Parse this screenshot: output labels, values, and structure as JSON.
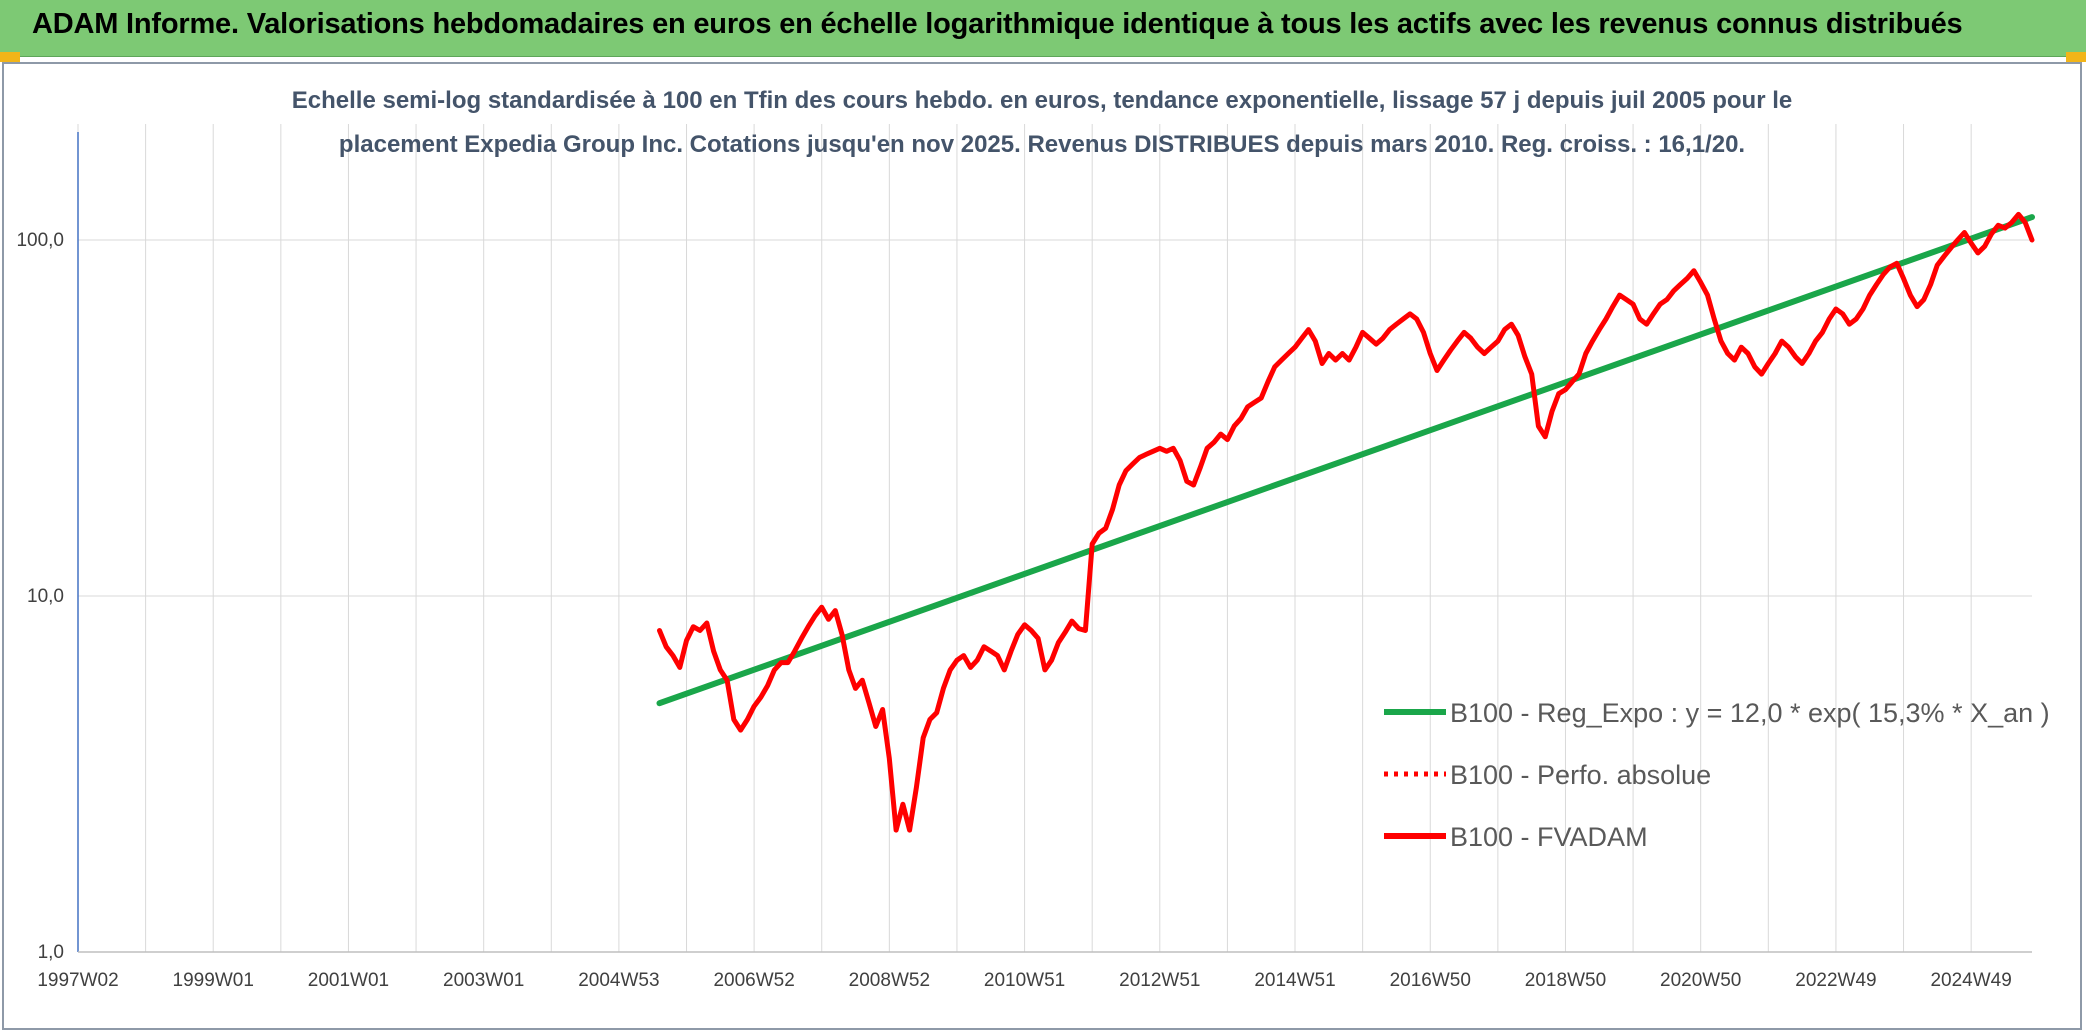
{
  "header": {
    "title": "ADAM Informe. Valorisations hebdomadaires en euros en échelle logarithmique identique à tous les actifs avec les revenus connus distribués"
  },
  "colors": {
    "banner": "#7dc974",
    "corner": "#f2b519",
    "regression": "#1aa64a",
    "performance": "#ff0000",
    "grid": "#d9d9d9",
    "axis": "#4472c4"
  },
  "chart_data": {
    "type": "line",
    "title_lines": [
      "Echelle semi-log standardisée à 100 en Tfin des cours hebdo. en euros, tendance exponentielle, lissage 57 j depuis juil 2005 pour le",
      "placement Expedia Group Inc. Cotations jusqu'en nov 2025. Revenus DISTRIBUES depuis mars 2010. Reg. croiss. : 16,1/20."
    ],
    "y_scale": "log",
    "ylim": [
      1,
      180
    ],
    "y_ticks": [
      {
        "value": 1,
        "label": "1,0"
      },
      {
        "value": 10,
        "label": "10,0"
      },
      {
        "value": 100,
        "label": "100,0"
      }
    ],
    "xlim": [
      1997.0,
      2025.9
    ],
    "x_ticks": [
      {
        "value": 1997.0,
        "label": "1997W02"
      },
      {
        "value": 1999.0,
        "label": "1999W01"
      },
      {
        "value": 2001.0,
        "label": "2001W01"
      },
      {
        "value": 2003.0,
        "label": "2003W01"
      },
      {
        "value": 2005.0,
        "label": "2004W53"
      },
      {
        "value": 2007.0,
        "label": "2006W52"
      },
      {
        "value": 2009.0,
        "label": "2008W52"
      },
      {
        "value": 2011.0,
        "label": "2010W51"
      },
      {
        "value": 2013.0,
        "label": "2012W51"
      },
      {
        "value": 2015.0,
        "label": "2014W51"
      },
      {
        "value": 2017.0,
        "label": "2016W50"
      },
      {
        "value": 2019.0,
        "label": "2018W50"
      },
      {
        "value": 2021.0,
        "label": "2020W50"
      },
      {
        "value": 2023.0,
        "label": "2022W49"
      },
      {
        "value": 2025.0,
        "label": "2024W49"
      }
    ],
    "grid": true,
    "legend_position": "bottom-right",
    "series": [
      {
        "name": "B100 - Reg_Expo : y = 12,0 * exp( 15,3% *  X_an )",
        "style": "solid",
        "color": "#1aa64a",
        "points": [
          [
            2005.6,
            5.0
          ],
          [
            2025.9,
            116.0
          ]
        ]
      },
      {
        "name": "B100 - Perfo. absolue",
        "style": "dotted",
        "color": "#ff0000",
        "points": []
      },
      {
        "name": "B100 - FVADAM",
        "style": "solid",
        "color": "#ff0000",
        "points": [
          [
            2005.6,
            8.0
          ],
          [
            2005.7,
            7.2
          ],
          [
            2005.8,
            6.8
          ],
          [
            2005.9,
            6.3
          ],
          [
            2006.0,
            7.5
          ],
          [
            2006.1,
            8.2
          ],
          [
            2006.2,
            8.0
          ],
          [
            2006.3,
            8.4
          ],
          [
            2006.4,
            7.0
          ],
          [
            2006.5,
            6.2
          ],
          [
            2006.6,
            5.8
          ],
          [
            2006.7,
            4.5
          ],
          [
            2006.8,
            4.2
          ],
          [
            2006.9,
            4.5
          ],
          [
            2007.0,
            4.9
          ],
          [
            2007.1,
            5.2
          ],
          [
            2007.2,
            5.6
          ],
          [
            2007.3,
            6.2
          ],
          [
            2007.4,
            6.5
          ],
          [
            2007.5,
            6.5
          ],
          [
            2007.6,
            7.0
          ],
          [
            2007.7,
            7.6
          ],
          [
            2007.8,
            8.2
          ],
          [
            2007.9,
            8.8
          ],
          [
            2008.0,
            9.3
          ],
          [
            2008.1,
            8.6
          ],
          [
            2008.2,
            9.1
          ],
          [
            2008.3,
            7.8
          ],
          [
            2008.4,
            6.2
          ],
          [
            2008.5,
            5.5
          ],
          [
            2008.6,
            5.8
          ],
          [
            2008.7,
            5.0
          ],
          [
            2008.8,
            4.3
          ],
          [
            2008.9,
            4.8
          ],
          [
            2009.0,
            3.5
          ],
          [
            2009.1,
            2.2
          ],
          [
            2009.2,
            2.6
          ],
          [
            2009.3,
            2.2
          ],
          [
            2009.4,
            2.9
          ],
          [
            2009.5,
            4.0
          ],
          [
            2009.6,
            4.5
          ],
          [
            2009.7,
            4.7
          ],
          [
            2009.8,
            5.5
          ],
          [
            2009.9,
            6.2
          ],
          [
            2010.0,
            6.6
          ],
          [
            2010.1,
            6.8
          ],
          [
            2010.2,
            6.3
          ],
          [
            2010.3,
            6.6
          ],
          [
            2010.4,
            7.2
          ],
          [
            2010.5,
            7.0
          ],
          [
            2010.6,
            6.8
          ],
          [
            2010.7,
            6.2
          ],
          [
            2010.8,
            7.0
          ],
          [
            2010.9,
            7.8
          ],
          [
            2011.0,
            8.3
          ],
          [
            2011.1,
            8.0
          ],
          [
            2011.2,
            7.6
          ],
          [
            2011.3,
            6.2
          ],
          [
            2011.4,
            6.6
          ],
          [
            2011.5,
            7.4
          ],
          [
            2011.6,
            7.9
          ],
          [
            2011.7,
            8.5
          ],
          [
            2011.8,
            8.1
          ],
          [
            2011.9,
            8.0
          ],
          [
            2012.0,
            14.0
          ],
          [
            2012.1,
            15.0
          ],
          [
            2012.2,
            15.5
          ],
          [
            2012.3,
            17.5
          ],
          [
            2012.4,
            20.5
          ],
          [
            2012.5,
            22.5
          ],
          [
            2012.6,
            23.5
          ],
          [
            2012.7,
            24.5
          ],
          [
            2012.8,
            25.0
          ],
          [
            2012.9,
            25.5
          ],
          [
            2013.0,
            26.0
          ],
          [
            2013.1,
            25.5
          ],
          [
            2013.2,
            26.0
          ],
          [
            2013.3,
            24.0
          ],
          [
            2013.4,
            21.0
          ],
          [
            2013.5,
            20.5
          ],
          [
            2013.6,
            23.0
          ],
          [
            2013.7,
            26.0
          ],
          [
            2013.8,
            27.0
          ],
          [
            2013.9,
            28.5
          ],
          [
            2014.0,
            27.5
          ],
          [
            2014.1,
            30.0
          ],
          [
            2014.2,
            31.5
          ],
          [
            2014.3,
            34.0
          ],
          [
            2014.4,
            35.0
          ],
          [
            2014.5,
            36.0
          ],
          [
            2014.6,
            40.0
          ],
          [
            2014.7,
            44.0
          ],
          [
            2014.8,
            46.0
          ],
          [
            2014.9,
            48.0
          ],
          [
            2015.0,
            50.0
          ],
          [
            2015.1,
            53.0
          ],
          [
            2015.2,
            56.0
          ],
          [
            2015.3,
            52.0
          ],
          [
            2015.4,
            45.0
          ],
          [
            2015.5,
            48.0
          ],
          [
            2015.6,
            46.0
          ],
          [
            2015.7,
            48.0
          ],
          [
            2015.8,
            46.0
          ],
          [
            2015.9,
            50.0
          ],
          [
            2016.0,
            55.0
          ],
          [
            2016.1,
            53.0
          ],
          [
            2016.2,
            51.0
          ],
          [
            2016.3,
            53.0
          ],
          [
            2016.4,
            56.0
          ],
          [
            2016.5,
            58.0
          ],
          [
            2016.6,
            60.0
          ],
          [
            2016.7,
            62.0
          ],
          [
            2016.8,
            60.0
          ],
          [
            2016.9,
            55.0
          ],
          [
            2017.0,
            48.0
          ],
          [
            2017.1,
            43.0
          ],
          [
            2017.2,
            46.0
          ],
          [
            2017.3,
            49.0
          ],
          [
            2017.4,
            52.0
          ],
          [
            2017.5,
            55.0
          ],
          [
            2017.6,
            53.0
          ],
          [
            2017.7,
            50.0
          ],
          [
            2017.8,
            48.0
          ],
          [
            2017.9,
            50.0
          ],
          [
            2018.0,
            52.0
          ],
          [
            2018.1,
            56.0
          ],
          [
            2018.2,
            58.0
          ],
          [
            2018.3,
            54.0
          ],
          [
            2018.4,
            47.0
          ],
          [
            2018.5,
            42.0
          ],
          [
            2018.6,
            30.0
          ],
          [
            2018.7,
            28.0
          ],
          [
            2018.8,
            33.0
          ],
          [
            2018.9,
            37.0
          ],
          [
            2019.0,
            38.0
          ],
          [
            2019.1,
            40.0
          ],
          [
            2019.2,
            42.0
          ],
          [
            2019.3,
            48.0
          ],
          [
            2019.4,
            52.0
          ],
          [
            2019.5,
            56.0
          ],
          [
            2019.6,
            60.0
          ],
          [
            2019.7,
            65.0
          ],
          [
            2019.8,
            70.0
          ],
          [
            2019.9,
            68.0
          ],
          [
            2020.0,
            66.0
          ],
          [
            2020.1,
            60.0
          ],
          [
            2020.2,
            58.0
          ],
          [
            2020.3,
            62.0
          ],
          [
            2020.4,
            66.0
          ],
          [
            2020.5,
            68.0
          ],
          [
            2020.6,
            72.0
          ],
          [
            2020.7,
            75.0
          ],
          [
            2020.8,
            78.0
          ],
          [
            2020.9,
            82.0
          ],
          [
            2021.0,
            76.0
          ],
          [
            2021.1,
            70.0
          ],
          [
            2021.2,
            60.0
          ],
          [
            2021.3,
            52.0
          ],
          [
            2021.4,
            48.0
          ],
          [
            2021.5,
            46.0
          ],
          [
            2021.6,
            50.0
          ],
          [
            2021.7,
            48.0
          ],
          [
            2021.8,
            44.0
          ],
          [
            2021.9,
            42.0
          ],
          [
            2022.0,
            45.0
          ],
          [
            2022.1,
            48.0
          ],
          [
            2022.2,
            52.0
          ],
          [
            2022.3,
            50.0
          ],
          [
            2022.4,
            47.0
          ],
          [
            2022.5,
            45.0
          ],
          [
            2022.6,
            48.0
          ],
          [
            2022.7,
            52.0
          ],
          [
            2022.8,
            55.0
          ],
          [
            2022.9,
            60.0
          ],
          [
            2023.0,
            64.0
          ],
          [
            2023.1,
            62.0
          ],
          [
            2023.2,
            58.0
          ],
          [
            2023.3,
            60.0
          ],
          [
            2023.4,
            64.0
          ],
          [
            2023.5,
            70.0
          ],
          [
            2023.6,
            75.0
          ],
          [
            2023.7,
            80.0
          ],
          [
            2023.8,
            84.0
          ],
          [
            2023.9,
            86.0
          ],
          [
            2024.0,
            78.0
          ],
          [
            2024.1,
            70.0
          ],
          [
            2024.2,
            65.0
          ],
          [
            2024.3,
            68.0
          ],
          [
            2024.4,
            75.0
          ],
          [
            2024.5,
            85.0
          ],
          [
            2024.6,
            90.0
          ],
          [
            2024.7,
            95.0
          ],
          [
            2024.8,
            100.0
          ],
          [
            2024.9,
            105.0
          ],
          [
            2025.0,
            98.0
          ],
          [
            2025.1,
            92.0
          ],
          [
            2025.2,
            96.0
          ],
          [
            2025.3,
            104.0
          ],
          [
            2025.4,
            110.0
          ],
          [
            2025.5,
            108.0
          ],
          [
            2025.6,
            112.0
          ],
          [
            2025.7,
            118.0
          ],
          [
            2025.8,
            112.0
          ],
          [
            2025.9,
            100.0
          ]
        ]
      }
    ],
    "legend": [
      "B100 - Reg_Expo : y = 12,0 * exp( 15,3% *  X_an )",
      "B100 - Perfo. absolue",
      "B100 - FVADAM"
    ]
  }
}
